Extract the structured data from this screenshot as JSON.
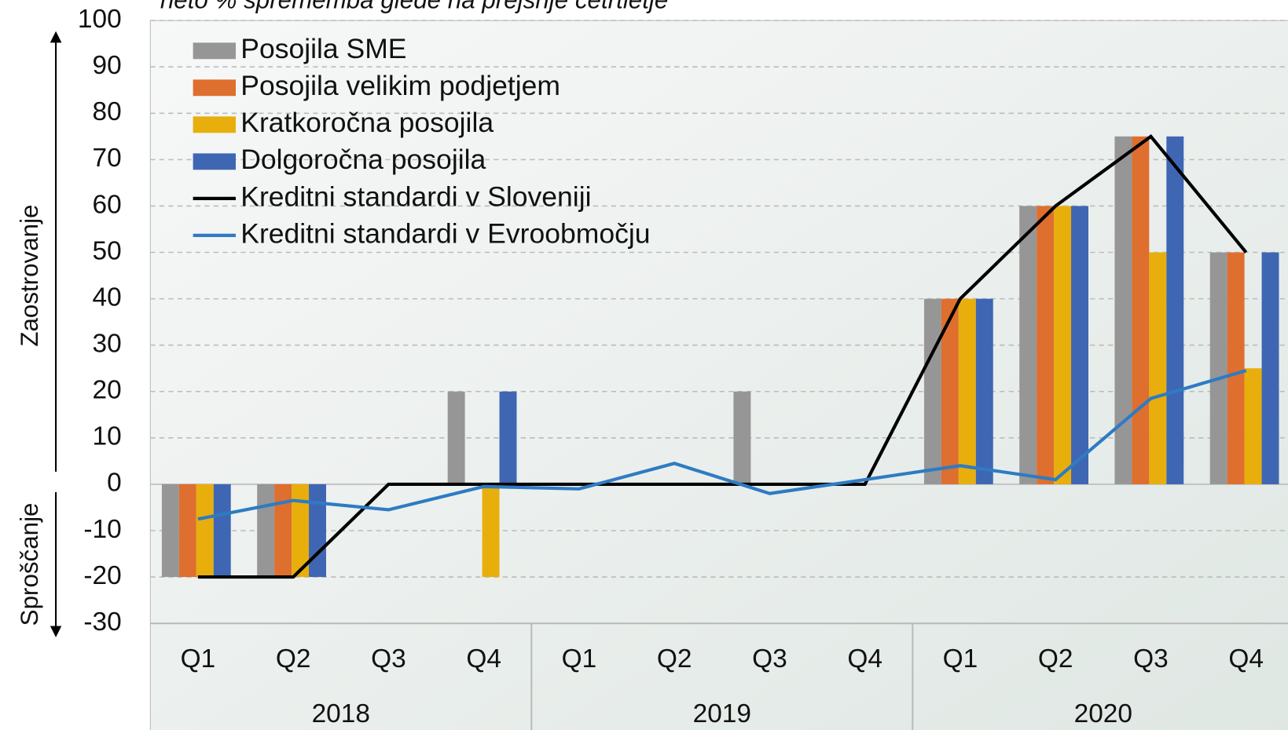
{
  "chart_data": {
    "type": "bar",
    "subtitle": "neto % sprememba glede na prejšnje četrtletje",
    "y_label_up": "Zaostrovanje",
    "y_label_down": "Sproščanje",
    "categories": [
      "Q1",
      "Q2",
      "Q3",
      "Q4",
      "Q1",
      "Q2",
      "Q3",
      "Q4",
      "Q1",
      "Q2",
      "Q3",
      "Q4"
    ],
    "group_labels": [
      "2018",
      "2019",
      "2020"
    ],
    "series": [
      {
        "name": "Posojila SME",
        "type": "bar",
        "color": "#969696",
        "values": [
          -20,
          -20,
          0,
          20,
          0,
          0,
          20,
          0,
          40,
          60,
          75,
          50
        ]
      },
      {
        "name": "Posojila velikim podjetjem",
        "type": "bar",
        "color": "#de6f2e",
        "values": [
          -20,
          -20,
          0,
          0,
          0,
          0,
          0,
          0,
          40,
          60,
          75,
          50
        ]
      },
      {
        "name": "Kratkoročna posojila",
        "type": "bar",
        "color": "#e8ae0c",
        "values": [
          -20,
          -20,
          0,
          -20,
          0,
          0,
          0,
          0,
          40,
          60,
          50,
          25
        ]
      },
      {
        "name": "Dolgoročna posojila",
        "type": "bar",
        "color": "#3f66b3",
        "values": [
          -20,
          -20,
          0,
          20,
          0,
          0,
          0,
          0,
          40,
          60,
          75,
          50
        ]
      },
      {
        "name": "Kreditni standardi v Sloveniji",
        "type": "line",
        "color": "#000000",
        "values": [
          -20,
          -20,
          0,
          0,
          0,
          0,
          0,
          0,
          40,
          60,
          75,
          50
        ]
      },
      {
        "name": "Kreditni standardi v Evroobmočju",
        "type": "line",
        "color": "#2e7bc4",
        "values": [
          -7.5,
          -3.5,
          -5.5,
          -0.5,
          -1,
          4.5,
          -2,
          1,
          4,
          1,
          18.5,
          24.5
        ]
      }
    ],
    "ylim": [
      -30,
      100
    ],
    "yticks": [
      -30,
      -20,
      -10,
      0,
      10,
      20,
      30,
      40,
      50,
      60,
      70,
      80,
      90,
      100
    ],
    "grid": true,
    "legend": "upper left"
  }
}
